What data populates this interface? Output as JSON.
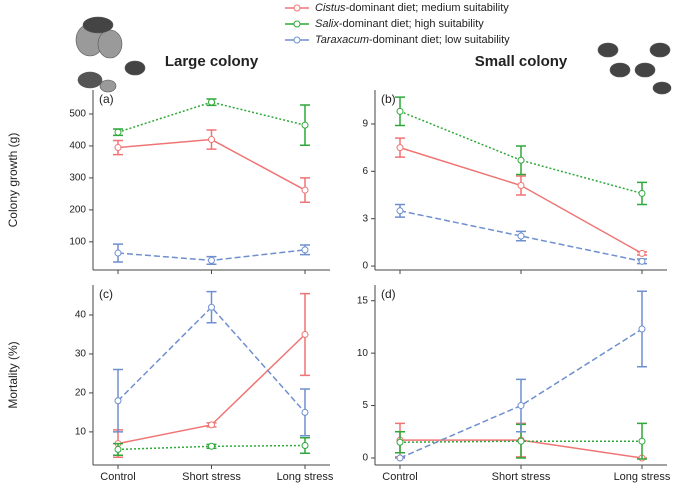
{
  "chart_data": [
    {
      "type": "line",
      "label": "(a)",
      "title": "Large colony",
      "ylabel": "Colony growth (g)",
      "ylim": [
        12,
        575
      ],
      "yticks": [
        100,
        200,
        300,
        400,
        500
      ],
      "series": [
        {
          "name": "Cistus-dominant diet; medium suitability",
          "color": "#f07474",
          "dash": "solid",
          "values": [
            395,
            420,
            262
          ],
          "errors": [
            22,
            30,
            38
          ]
        },
        {
          "name": "Salix-dominant diet; high suitability",
          "color": "#2fa83a",
          "dash": "dotted",
          "values": [
            443,
            537,
            465
          ],
          "errors": [
            10,
            10,
            63
          ]
        },
        {
          "name": "Taraxacum-dominant diet; low suitability",
          "color": "#6f8fcf",
          "dash": "dashed",
          "values": [
            65,
            42,
            75
          ],
          "errors": [
            28,
            12,
            15
          ]
        }
      ]
    },
    {
      "type": "line",
      "label": "(b)",
      "title": "Small colony",
      "ylim": [
        -0.25,
        11.15
      ],
      "yticks": [
        0,
        3,
        6,
        9
      ],
      "series": [
        {
          "color": "#f07474",
          "dash": "solid",
          "values": [
            7.5,
            5.1,
            0.8
          ],
          "errors": [
            0.6,
            0.6,
            0.1
          ]
        },
        {
          "color": "#2fa83a",
          "dash": "dotted",
          "values": [
            9.8,
            6.7,
            4.6
          ],
          "errors": [
            0.9,
            0.9,
            0.7
          ]
        },
        {
          "color": "#6f8fcf",
          "dash": "dashed",
          "values": [
            3.5,
            1.9,
            0.3
          ],
          "errors": [
            0.4,
            0.3,
            0.15
          ]
        }
      ]
    },
    {
      "type": "line",
      "label": "(c)",
      "ylabel": "Mortality (%)",
      "categories": [
        "Control",
        "Short stress",
        "Long stress"
      ],
      "ylim": [
        1.5,
        47.7
      ],
      "yticks": [
        10,
        20,
        30,
        40
      ],
      "series": [
        {
          "color": "#f07474",
          "dash": "solid",
          "values": [
            7,
            11.8,
            35
          ],
          "errors": [
            3.5,
            0.5,
            10.5
          ]
        },
        {
          "color": "#2fa83a",
          "dash": "dotted",
          "values": [
            5.5,
            6.3,
            6.5
          ],
          "errors": [
            1.5,
            0.5,
            2
          ]
        },
        {
          "color": "#6f8fcf",
          "dash": "dashed",
          "values": [
            18,
            42,
            15
          ],
          "errors": [
            8,
            4,
            6
          ]
        }
      ]
    },
    {
      "type": "line",
      "label": "(d)",
      "categories": [
        "Control",
        "Short stress",
        "Long stress"
      ],
      "ylim": [
        -0.67,
        16.5
      ],
      "yticks": [
        0,
        5,
        10,
        15
      ],
      "series": [
        {
          "color": "#f07474",
          "dash": "solid",
          "values": [
            1.7,
            1.7,
            0
          ],
          "errors": [
            1.6,
            1.6,
            0
          ]
        },
        {
          "color": "#2fa83a",
          "dash": "dotted",
          "values": [
            1.5,
            1.6,
            1.6
          ],
          "errors": [
            1,
            1.6,
            1.7
          ]
        },
        {
          "color": "#6f8fcf",
          "dash": "dashed",
          "values": [
            0,
            5,
            12.3
          ],
          "errors": [
            0,
            2.5,
            3.6
          ]
        }
      ]
    }
  ]
}
